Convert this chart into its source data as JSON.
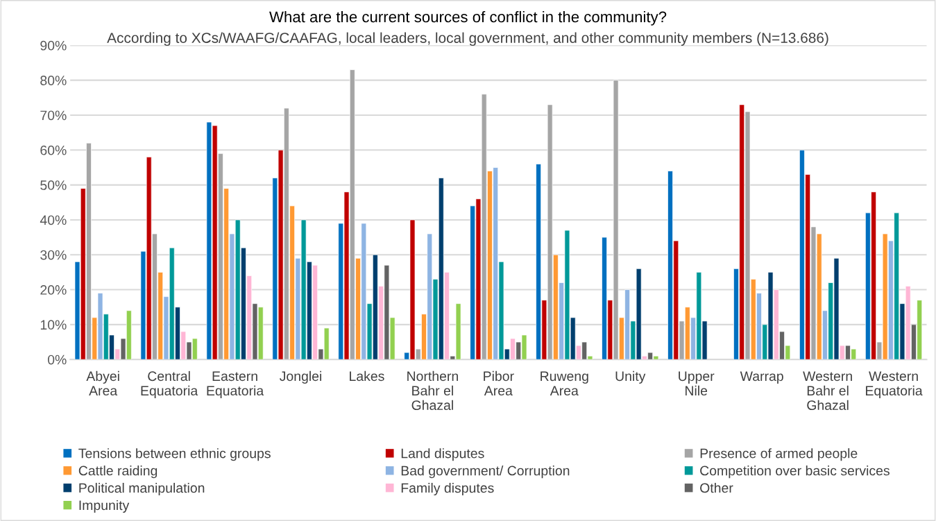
{
  "chart_data": {
    "type": "bar",
    "title": "What are the current sources of conflict in the community?",
    "subtitle": "According to XCs/WAAFG/CAAFAG, local leaders, local government, and other community members (N=13.686)",
    "categories": [
      "Abyei\nArea",
      "Central\nEquatoria",
      "Eastern\nEquatoria",
      "Jonglei",
      "Lakes",
      "Northern\nBahr el\nGhazal",
      "Pibor\nArea",
      "Ruweng\nArea",
      "Unity",
      "Upper\nNile",
      "Warrap",
      "Western\nBahr el\nGhazal",
      "Western\nEquatoria"
    ],
    "series": [
      {
        "name": "Tensions between ethnic groups",
        "color": "#0070c0",
        "values": [
          28,
          31,
          68,
          52,
          39,
          2,
          44,
          56,
          35,
          54,
          26,
          60,
          42
        ]
      },
      {
        "name": "Land disputes",
        "color": "#c00000",
        "values": [
          49,
          58,
          67,
          60,
          48,
          40,
          46,
          17,
          17,
          34,
          73,
          53,
          48
        ]
      },
      {
        "name": "Presence of armed people",
        "color": "#a5a5a5",
        "values": [
          62,
          36,
          59,
          72,
          83,
          3,
          76,
          73,
          80,
          11,
          71,
          38,
          5
        ]
      },
      {
        "name": "Cattle raiding",
        "color": "#ff9933",
        "values": [
          12,
          25,
          49,
          44,
          29,
          13,
          54,
          30,
          12,
          15,
          23,
          36,
          36
        ]
      },
      {
        "name": "Bad government/ Corruption",
        "color": "#8eb4e3",
        "values": [
          19,
          18,
          36,
          29,
          39,
          36,
          55,
          22,
          20,
          12,
          19,
          14,
          34
        ]
      },
      {
        "name": "Competition over basic services",
        "color": "#009999",
        "values": [
          13,
          32,
          40,
          40,
          16,
          23,
          28,
          37,
          11,
          25,
          10,
          22,
          42
        ]
      },
      {
        "name": "Political manipulation",
        "color": "#003f6e",
        "values": [
          7,
          15,
          32,
          28,
          30,
          52,
          3,
          12,
          26,
          11,
          25,
          29,
          16
        ]
      },
      {
        "name": "Family disputes",
        "color": "#ffb6d5",
        "values": [
          3,
          8,
          24,
          27,
          21,
          25,
          6,
          4,
          1,
          null,
          20,
          4,
          21
        ]
      },
      {
        "name": "Other",
        "color": "#636363",
        "values": [
          6,
          5,
          16,
          3,
          27,
          1,
          5,
          5,
          2,
          null,
          8,
          4,
          10
        ]
      },
      {
        "name": "Impunity",
        "color": "#92d050",
        "values": [
          14,
          6,
          15,
          9,
          12,
          16,
          7,
          1,
          1,
          null,
          4,
          3,
          17
        ]
      }
    ],
    "ylim": [
      0,
      90
    ],
    "yticks": [
      {
        "value": 0,
        "label": "0%"
      },
      {
        "value": 10,
        "label": "10%"
      },
      {
        "value": 20,
        "label": "20%"
      },
      {
        "value": 30,
        "label": "30%"
      },
      {
        "value": 40,
        "label": "40%"
      },
      {
        "value": 50,
        "label": "50%"
      },
      {
        "value": 60,
        "label": "60%"
      },
      {
        "value": 70,
        "label": "70%"
      },
      {
        "value": 80,
        "label": "80%"
      },
      {
        "value": 90,
        "label": "90%"
      }
    ],
    "grid": "y",
    "legend": "bottom"
  }
}
